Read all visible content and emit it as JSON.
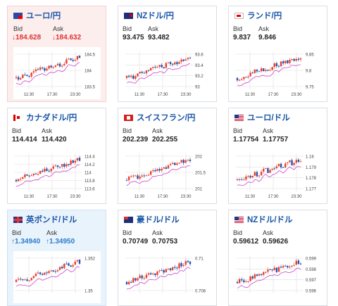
{
  "cards": [
    {
      "title": "ユーロ/円",
      "flag": "eu",
      "bid_label": "Bid",
      "ask_label": "Ask",
      "bid": "↓184.628",
      "ask": "↓184.632",
      "trend": "down",
      "x_ticks": [
        "11:30",
        "17:30",
        "23:30"
      ],
      "y_ticks": [
        "184.5",
        "184",
        "183.5"
      ]
    },
    {
      "title": "NZドル/円",
      "flag": "nz",
      "bid_label": "Bid",
      "ask_label": "Ask",
      "bid": "93.475",
      "ask": "93.482",
      "trend": "none",
      "x_ticks": [
        "11:30",
        "17:30",
        "23:30"
      ],
      "y_ticks": [
        "93.6",
        "93.4",
        "93.2",
        "93"
      ]
    },
    {
      "title": "ランド/円",
      "flag": "za",
      "bid_label": "Bid",
      "ask_label": "Ask",
      "bid": "9.837",
      "ask": "9.846",
      "trend": "none",
      "x_ticks": [
        "11:30",
        "17:30",
        "23:30"
      ],
      "y_ticks": [
        "9.85",
        "9.8",
        "9.75"
      ]
    },
    {
      "title": "カナダドル/円",
      "flag": "ca",
      "bid_label": "Bid",
      "ask_label": "Ask",
      "bid": "114.414",
      "ask": "114.420",
      "trend": "none",
      "x_ticks": [
        "11:30",
        "17:30",
        "23:30"
      ],
      "y_ticks": [
        "114.4",
        "114.2",
        "114",
        "113.8",
        "113.6"
      ]
    },
    {
      "title": "スイスフラン/円",
      "flag": "ch",
      "bid_label": "Bid",
      "ask_label": "Ask",
      "bid": "202.239",
      "ask": "202.255",
      "trend": "none",
      "x_ticks": [
        "11:30",
        "17:30",
        "23:30"
      ],
      "y_ticks": [
        "202",
        "201.5",
        "201"
      ]
    },
    {
      "title": "ユーロ/ドル",
      "flag": "us",
      "bid_label": "Bid",
      "ask_label": "Ask",
      "bid": "1.17754",
      "ask": "1.17757",
      "trend": "none",
      "x_ticks": [
        "11:30",
        "17:30",
        "23:30"
      ],
      "y_ticks": [
        "1.18",
        "1.179",
        "1.178",
        "1.177"
      ]
    },
    {
      "title": "英ポンド/ドル",
      "flag": "gb",
      "bid_label": "Bid",
      "ask_label": "Ask",
      "bid": "↑1.34940",
      "ask": "↑1.34950",
      "trend": "up",
      "x_ticks": [],
      "y_ticks": [
        "1.352",
        "1.35"
      ]
    },
    {
      "title": "豪ドル/ドル",
      "flag": "au",
      "bid_label": "Bid",
      "ask_label": "Ask",
      "bid": "0.70749",
      "ask": "0.70753",
      "trend": "none",
      "x_ticks": [],
      "y_ticks": [
        "0.71",
        "0.708"
      ]
    },
    {
      "title": "NZドル/ドル",
      "flag": "us",
      "bid_label": "Bid",
      "ask_label": "Ask",
      "bid": "0.59612",
      "ask": "0.59626",
      "trend": "none",
      "x_ticks": [],
      "y_ticks": [
        "0.599",
        "0.598",
        "0.597",
        "0.596"
      ]
    }
  ],
  "colors": {
    "up_candle": "#e8402a",
    "down_candle": "#2a4fb0",
    "ma_line": "#cc44cc",
    "grid": "#dddddd",
    "title_blue": "#1a56a8"
  }
}
